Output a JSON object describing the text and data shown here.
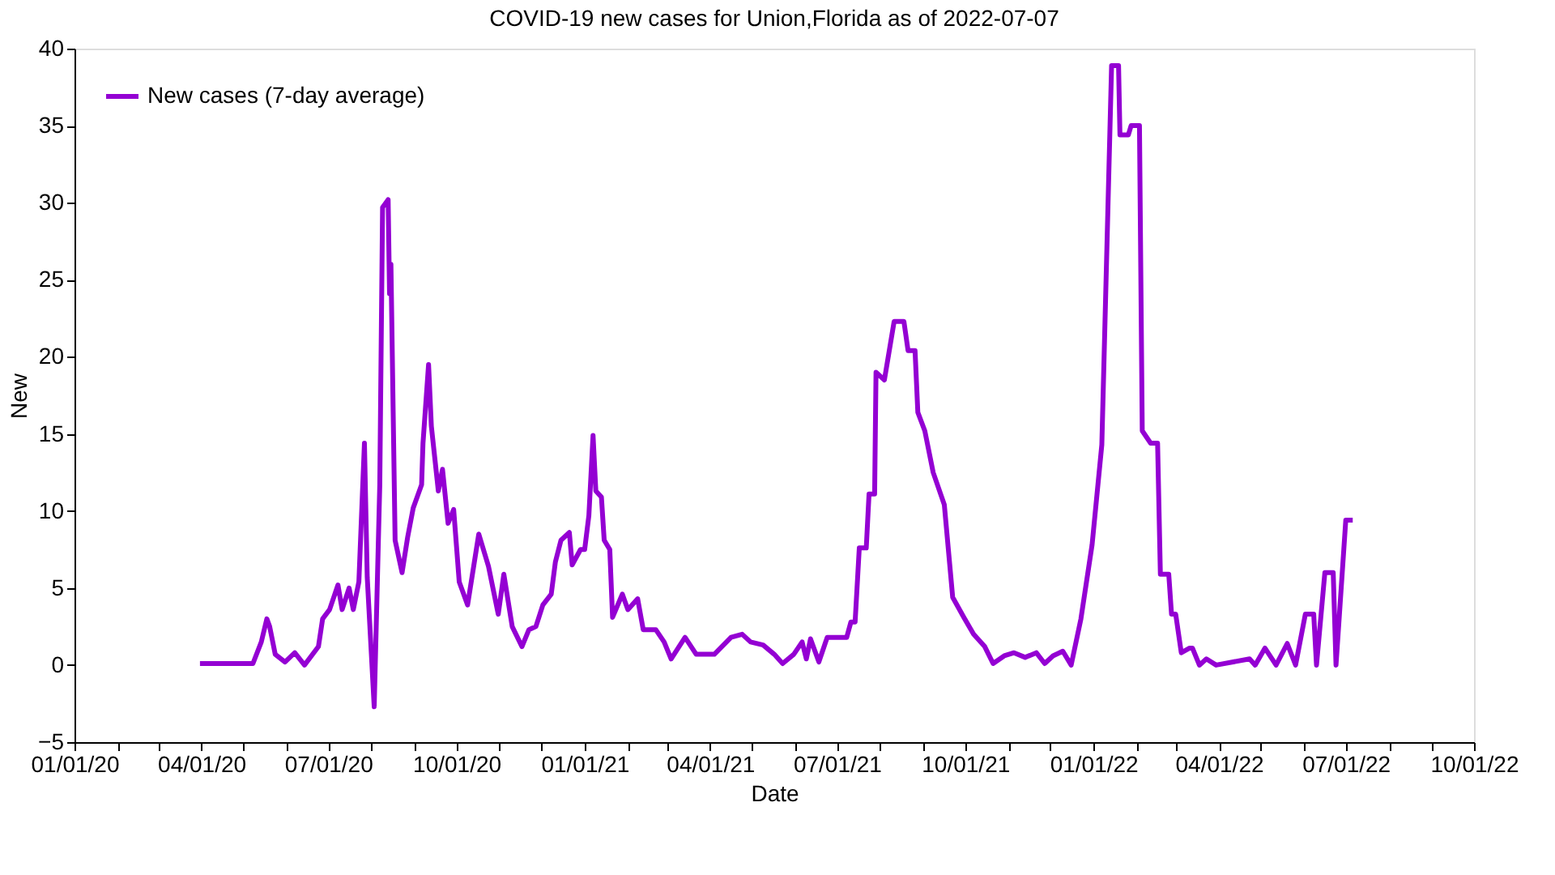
{
  "chart_data": {
    "type": "line",
    "title": "COVID-19 new cases for Union,Florida as of 2022-07-07",
    "xlabel": "Date",
    "ylabel": "New",
    "x": [
      "2020-03-31",
      "2020-04-21",
      "2020-05-08",
      "2020-05-14",
      "2020-05-18",
      "2020-05-20",
      "2020-05-24",
      "2020-05-31",
      "2020-06-07",
      "2020-06-14",
      "2020-06-24",
      "2020-06-27",
      "2020-07-02",
      "2020-07-08",
      "2020-07-11",
      "2020-07-16",
      "2020-07-19",
      "2020-07-23",
      "2020-07-27",
      "2020-07-29",
      "2020-08-03",
      "2020-08-06",
      "2020-08-07",
      "2020-08-09",
      "2020-08-13",
      "2020-08-14",
      "2020-08-15",
      "2020-08-18",
      "2020-08-23",
      "2020-08-27",
      "2020-08-31",
      "2020-09-06",
      "2020-09-07",
      "2020-09-11",
      "2020-09-13",
      "2020-09-18",
      "2020-09-21",
      "2020-09-25",
      "2020-09-29",
      "2020-10-03",
      "2020-10-09",
      "2020-10-17",
      "2020-10-24",
      "2020-10-31",
      "2020-11-04",
      "2020-11-10",
      "2020-11-17",
      "2020-11-22",
      "2020-11-27",
      "2020-12-02",
      "2020-12-08",
      "2020-12-11",
      "2020-12-15",
      "2020-12-21",
      "2020-12-23",
      "2020-12-29",
      "2021-01-01",
      "2021-01-04",
      "2021-01-07",
      "2021-01-09",
      "2021-01-13",
      "2021-01-15",
      "2021-01-19",
      "2021-01-21",
      "2021-01-28",
      "2021-02-01",
      "2021-02-08",
      "2021-02-12",
      "2021-02-21",
      "2021-02-27",
      "2021-03-04",
      "2021-03-14",
      "2021-03-22",
      "2021-04-04",
      "2021-04-16",
      "2021-04-24",
      "2021-04-30",
      "2021-05-09",
      "2021-05-17",
      "2021-05-23",
      "2021-05-31",
      "2021-06-06",
      "2021-06-09",
      "2021-06-12",
      "2021-06-18",
      "2021-06-24",
      "2021-07-08",
      "2021-07-11",
      "2021-07-14",
      "2021-07-17",
      "2021-07-22",
      "2021-07-24",
      "2021-07-28",
      "2021-07-29",
      "2021-08-04",
      "2021-08-11",
      "2021-08-18",
      "2021-08-21",
      "2021-08-26",
      "2021-08-28",
      "2021-09-02",
      "2021-09-08",
      "2021-09-16",
      "2021-09-22",
      "2021-09-30",
      "2021-10-07",
      "2021-10-15",
      "2021-10-21",
      "2021-10-29",
      "2021-11-05",
      "2021-11-13",
      "2021-11-21",
      "2021-11-27",
      "2021-12-03",
      "2021-12-10",
      "2021-12-16",
      "2021-12-23",
      "2021-12-31",
      "2022-01-07",
      "2022-01-14",
      "2022-01-19",
      "2022-01-20",
      "2022-01-26",
      "2022-01-28",
      "2022-02-03",
      "2022-02-05",
      "2022-02-11",
      "2022-02-16",
      "2022-02-18",
      "2022-02-24",
      "2022-02-26",
      "2022-03-01",
      "2022-03-05",
      "2022-03-11",
      "2022-03-13",
      "2022-03-18",
      "2022-03-23",
      "2022-03-30",
      "2022-04-23",
      "2022-04-27",
      "2022-05-04",
      "2022-05-12",
      "2022-05-20",
      "2022-05-26",
      "2022-06-02",
      "2022-06-08",
      "2022-06-10",
      "2022-06-16",
      "2022-06-22",
      "2022-06-24",
      "2022-07-01",
      "2022-07-06"
    ],
    "series": [
      {
        "name": "New cases (7-day average)",
        "color": "#9400d3",
        "values": [
          0.1,
          0.1,
          0.1,
          1.5,
          3.0,
          2.5,
          0.7,
          0.2,
          0.8,
          0,
          1.2,
          3.0,
          3.6,
          5.2,
          3.6,
          5.0,
          3.6,
          5.4,
          14.4,
          5.7,
          -2.7,
          8.1,
          11.7,
          29.7,
          30.2,
          24.1,
          26.0,
          8.1,
          6.0,
          8.3,
          10.2,
          11.7,
          14.4,
          19.5,
          15.5,
          11.3,
          12.7,
          9.2,
          10.1,
          5.4,
          3.9,
          8.5,
          6.4,
          3.3,
          5.9,
          2.5,
          1.2,
          2.3,
          2.5,
          3.9,
          4.6,
          6.7,
          8.1,
          8.6,
          6.5,
          7.5,
          7.5,
          9.7,
          14.9,
          11.3,
          10.9,
          8.1,
          7.5,
          3.1,
          4.6,
          3.6,
          4.3,
          2.3,
          2.3,
          1.5,
          0.4,
          1.8,
          0.7,
          0.7,
          1.8,
          2.0,
          1.5,
          1.3,
          0.7,
          0.1,
          0.7,
          1.5,
          0.4,
          1.7,
          0.2,
          1.8,
          1.8,
          2.8,
          2.8,
          7.6,
          7.6,
          11.1,
          11.1,
          19.0,
          18.5,
          22.3,
          22.3,
          20.4,
          20.4,
          16.4,
          15.2,
          12.5,
          10.4,
          4.4,
          3.1,
          2.0,
          1.2,
          0.1,
          0.6,
          0.8,
          0.5,
          0.8,
          0.1,
          0.6,
          0.9,
          0,
          3.0,
          7.8,
          14.3,
          38.9,
          38.9,
          34.4,
          34.4,
          35.0,
          35.0,
          15.2,
          14.4,
          14.4,
          5.9,
          5.9,
          3.3,
          3.3,
          0.8,
          1.1,
          1.1,
          0,
          0.4,
          0,
          0.4,
          0,
          1.1,
          0,
          1.4,
          0,
          3.3,
          3.3,
          0,
          6.0,
          6.0,
          0,
          9.4,
          9.4
        ]
      }
    ],
    "xlim": [
      "2020-01-01",
      "2022-10-01"
    ],
    "xticks": [
      {
        "value": "2020-01-01",
        "label": "01/01/20"
      },
      {
        "value": "2020-02-01",
        "label": null
      },
      {
        "value": "2020-03-01",
        "label": null
      },
      {
        "value": "2020-04-01",
        "label": "04/01/20"
      },
      {
        "value": "2020-05-01",
        "label": null
      },
      {
        "value": "2020-06-01",
        "label": null
      },
      {
        "value": "2020-07-01",
        "label": "07/01/20"
      },
      {
        "value": "2020-08-01",
        "label": null
      },
      {
        "value": "2020-09-01",
        "label": null
      },
      {
        "value": "2020-10-01",
        "label": "10/01/20"
      },
      {
        "value": "2020-11-01",
        "label": null
      },
      {
        "value": "2020-12-01",
        "label": null
      },
      {
        "value": "2021-01-01",
        "label": "01/01/21"
      },
      {
        "value": "2021-02-01",
        "label": null
      },
      {
        "value": "2021-03-01",
        "label": null
      },
      {
        "value": "2021-04-01",
        "label": "04/01/21"
      },
      {
        "value": "2021-05-01",
        "label": null
      },
      {
        "value": "2021-06-01",
        "label": null
      },
      {
        "value": "2021-07-01",
        "label": "07/01/21"
      },
      {
        "value": "2021-08-01",
        "label": null
      },
      {
        "value": "2021-09-01",
        "label": null
      },
      {
        "value": "2021-10-01",
        "label": "10/01/21"
      },
      {
        "value": "2021-11-01",
        "label": null
      },
      {
        "value": "2021-12-01",
        "label": null
      },
      {
        "value": "2022-01-01",
        "label": "01/01/22"
      },
      {
        "value": "2022-02-01",
        "label": null
      },
      {
        "value": "2022-03-01",
        "label": null
      },
      {
        "value": "2022-04-01",
        "label": "04/01/22"
      },
      {
        "value": "2022-05-01",
        "label": null
      },
      {
        "value": "2022-06-01",
        "label": null
      },
      {
        "value": "2022-07-01",
        "label": "07/01/22"
      },
      {
        "value": "2022-08-01",
        "label": null
      },
      {
        "value": "2022-09-01",
        "label": null
      },
      {
        "value": "2022-10-01",
        "label": "10/01/22"
      }
    ],
    "ylim": [
      -5,
      40
    ],
    "yticks": [
      -5,
      0,
      5,
      10,
      15,
      20,
      25,
      30,
      35,
      40
    ],
    "grid": false,
    "legend": "top left",
    "marker": "none",
    "line_style": "solid"
  }
}
